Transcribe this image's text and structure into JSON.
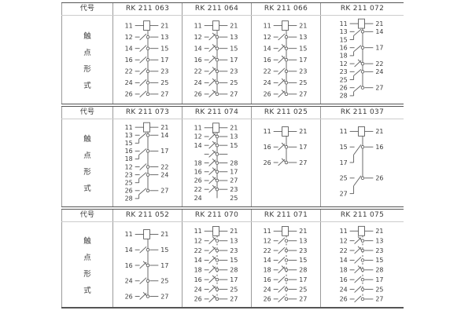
{
  "table": {
    "code_header_label": "代号",
    "side_label": "触点形式",
    "side_label_chars": [
      "触",
      "点",
      "形",
      "式"
    ],
    "colors": {
      "background": "#ffffff",
      "band_border": "#555555",
      "grid_line": "#9a9a9a",
      "header_underline": "#cccccc",
      "text": "#3a3a3a",
      "diagram_line": "#5a5a5a"
    },
    "bands": [
      {
        "models": [
          {
            "name": "RK 211 063",
            "link": "solid",
            "rows": [
              [
                "coil",
                "11",
                "21"
              ],
              [
                "no",
                "12",
                "13"
              ],
              [
                "no",
                "14",
                "15"
              ],
              [
                "no",
                "16",
                "17"
              ],
              [
                "no",
                "22",
                "23"
              ],
              [
                "no",
                "24",
                "25"
              ],
              [
                "no",
                "26",
                "27"
              ]
            ]
          },
          {
            "name": "RK 211 064",
            "link": "solid",
            "rows": [
              [
                "coil",
                "11",
                "21"
              ],
              [
                "nc",
                "12",
                "13"
              ],
              [
                "nc",
                "14",
                "15"
              ],
              [
                "nc",
                "16",
                "17"
              ],
              [
                "nc",
                "22",
                "23"
              ],
              [
                "nc",
                "24",
                "25"
              ],
              [
                "nc",
                "26",
                "27"
              ]
            ]
          },
          {
            "name": "RK 211 066",
            "link": "solid",
            "rows": [
              [
                "coil",
                "11",
                "21"
              ],
              [
                "no",
                "12",
                "13"
              ],
              [
                "nc",
                "14",
                "15"
              ],
              [
                "nc",
                "16",
                "17"
              ],
              [
                "no",
                "22",
                "23"
              ],
              [
                "nc",
                "24",
                "25"
              ],
              [
                "nc",
                "26",
                "27"
              ]
            ]
          },
          {
            "name": "RK 211 072",
            "link": "solid",
            "rows": [
              [
                "coil",
                "11",
                "21"
              ],
              [
                "co",
                "13",
                "14",
                "15"
              ],
              [
                "co",
                "16",
                "17",
                "18"
              ],
              [
                "nc",
                "12",
                "22"
              ],
              [
                "co",
                "23",
                "24",
                "25"
              ],
              [
                "co",
                "26",
                "27",
                "28"
              ]
            ]
          }
        ]
      },
      {
        "models": [
          {
            "name": "RK 211 073",
            "link": "solid",
            "rows": [
              [
                "coil",
                "11",
                "21"
              ],
              [
                "co",
                "13",
                "14",
                "15"
              ],
              [
                "co",
                "16",
                "17",
                "18"
              ],
              [
                "no",
                "12",
                "22"
              ],
              [
                "co",
                "23",
                "24",
                "25"
              ],
              [
                "co",
                "26",
                "27",
                "28"
              ]
            ]
          },
          {
            "name": "RK 211 074",
            "link": "solid",
            "rows": [
              [
                "coil",
                "11",
                "21"
              ],
              [
                "nc",
                "12",
                "13"
              ],
              [
                "nc",
                "14",
                "15"
              ],
              [
                "nc",
                "",
                ""
              ],
              [
                "nc",
                "18",
                "28"
              ],
              [
                "nc",
                "16",
                "17"
              ],
              [
                "nc",
                "26",
                "27"
              ],
              [
                "nc",
                "22",
                "23"
              ],
              [
                "bare",
                "24",
                "25"
              ]
            ]
          },
          {
            "name": "RK 211 025",
            "link": "solid",
            "rows": [
              [
                "coil",
                "11",
                "21"
              ],
              [
                "nc",
                "16",
                "17"
              ],
              [
                "nc",
                "26",
                "27"
              ]
            ]
          },
          {
            "name": "RK 211 037",
            "link": "solid",
            "rows": [
              [
                "coil",
                "11",
                "21"
              ],
              [
                "co",
                "15",
                "16",
                "17"
              ],
              [
                "co",
                "25",
                "26",
                "27"
              ]
            ]
          }
        ]
      },
      {
        "models": [
          {
            "name": "RK 211 052",
            "link": "solid",
            "rows": [
              [
                "coil",
                "11",
                "21"
              ],
              [
                "no",
                "14",
                "15"
              ],
              [
                "nc",
                "16",
                "17"
              ],
              [
                "no",
                "24",
                "25"
              ],
              [
                "nc",
                "26",
                "27"
              ]
            ]
          },
          {
            "name": "RK 211 070",
            "link": "dashed",
            "rows": [
              [
                "coil",
                "11",
                "21"
              ],
              [
                "nc",
                "12",
                "13"
              ],
              [
                "nc",
                "22",
                "23"
              ],
              [
                "nc",
                "14",
                "15"
              ],
              [
                "nc",
                "18",
                "28"
              ],
              [
                "nc",
                "16",
                "17"
              ],
              [
                "nc",
                "24",
                "25"
              ],
              [
                "nc",
                "26",
                "27"
              ]
            ]
          },
          {
            "name": "RK 211 071",
            "link": "dashed",
            "rows": [
              [
                "coil",
                "11",
                "21"
              ],
              [
                "no",
                "12",
                "13"
              ],
              [
                "no",
                "22",
                "23"
              ],
              [
                "no",
                "14",
                "15"
              ],
              [
                "nc",
                "18",
                "28"
              ],
              [
                "no",
                "16",
                "17"
              ],
              [
                "no",
                "24",
                "25"
              ],
              [
                "no",
                "26",
                "27"
              ]
            ]
          },
          {
            "name": "RK 211 075",
            "link": "dashed",
            "rows": [
              [
                "coil",
                "11",
                "21"
              ],
              [
                "nc",
                "12",
                "13"
              ],
              [
                "nc",
                "22",
                "23"
              ],
              [
                "no",
                "14",
                "15"
              ],
              [
                "nc",
                "18",
                "28"
              ],
              [
                "no",
                "16",
                "17"
              ],
              [
                "no",
                "24",
                "25"
              ],
              [
                "no",
                "26",
                "27"
              ]
            ]
          }
        ]
      }
    ]
  }
}
